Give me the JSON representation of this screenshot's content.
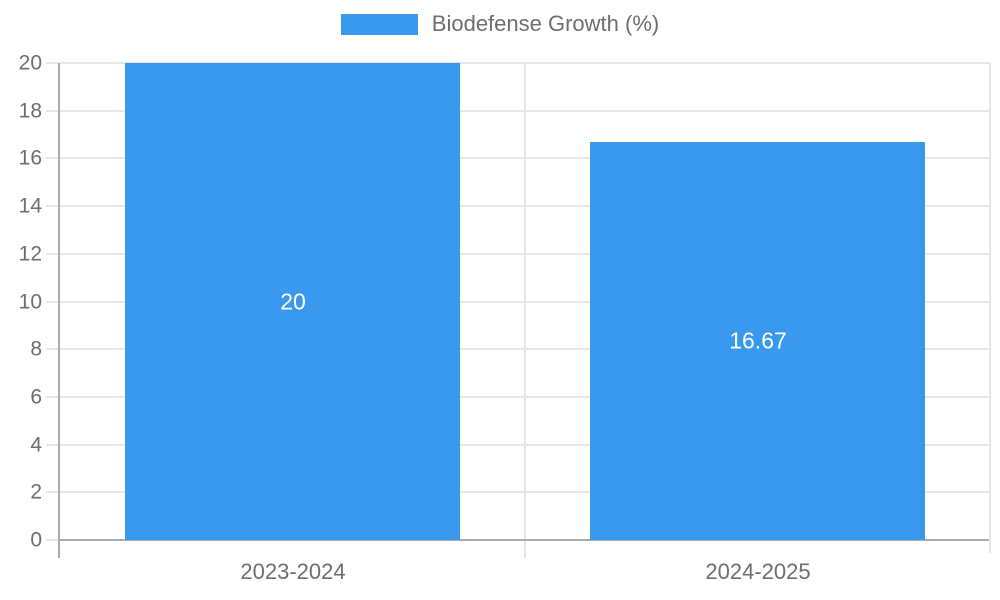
{
  "chart_data": {
    "type": "bar",
    "legend": "Biodefense Growth (%)",
    "legend_position": "top",
    "categories": [
      "2023-2024",
      "2024-2025"
    ],
    "values": [
      20,
      16.67
    ],
    "value_labels": [
      "20",
      "16.67"
    ],
    "yticks": [
      0,
      2,
      4,
      6,
      8,
      10,
      12,
      14,
      16,
      18,
      20
    ],
    "ytick_labels": [
      "0",
      "2",
      "4",
      "6",
      "8",
      "10",
      "12",
      "14",
      "16",
      "18",
      "20"
    ],
    "ylim": [
      0,
      20
    ],
    "grid": true,
    "xlabel": "",
    "ylabel": "",
    "title": ""
  },
  "colors": {
    "bar": "#3999EE",
    "bar_label_text": "#FFFFFF",
    "axis_line": "#ACACAC",
    "grid_line": "#E7E7E7",
    "tick_text": "#6E6E6E",
    "background": "#FFFFFF"
  }
}
